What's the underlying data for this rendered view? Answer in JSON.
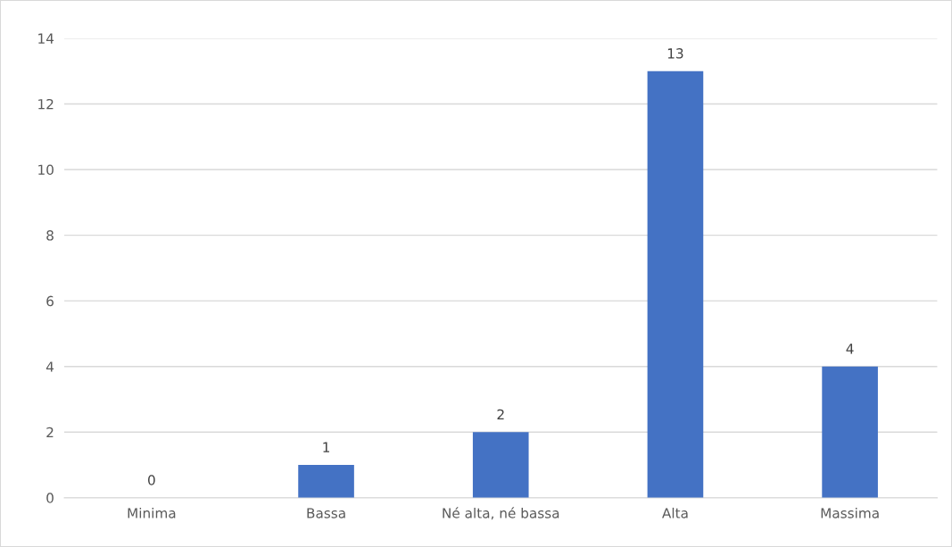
{
  "chart_data": {
    "type": "bar",
    "categories": [
      "Minima",
      "Bassa",
      "Né alta, né bassa",
      "Alta",
      "Massima"
    ],
    "values": [
      0,
      1,
      2,
      13,
      4
    ],
    "color": "#4472c4",
    "ylim": [
      0,
      14
    ],
    "yticks": [
      0,
      2,
      4,
      6,
      8,
      10,
      12,
      14
    ],
    "grid": "y",
    "data_labels": true
  }
}
